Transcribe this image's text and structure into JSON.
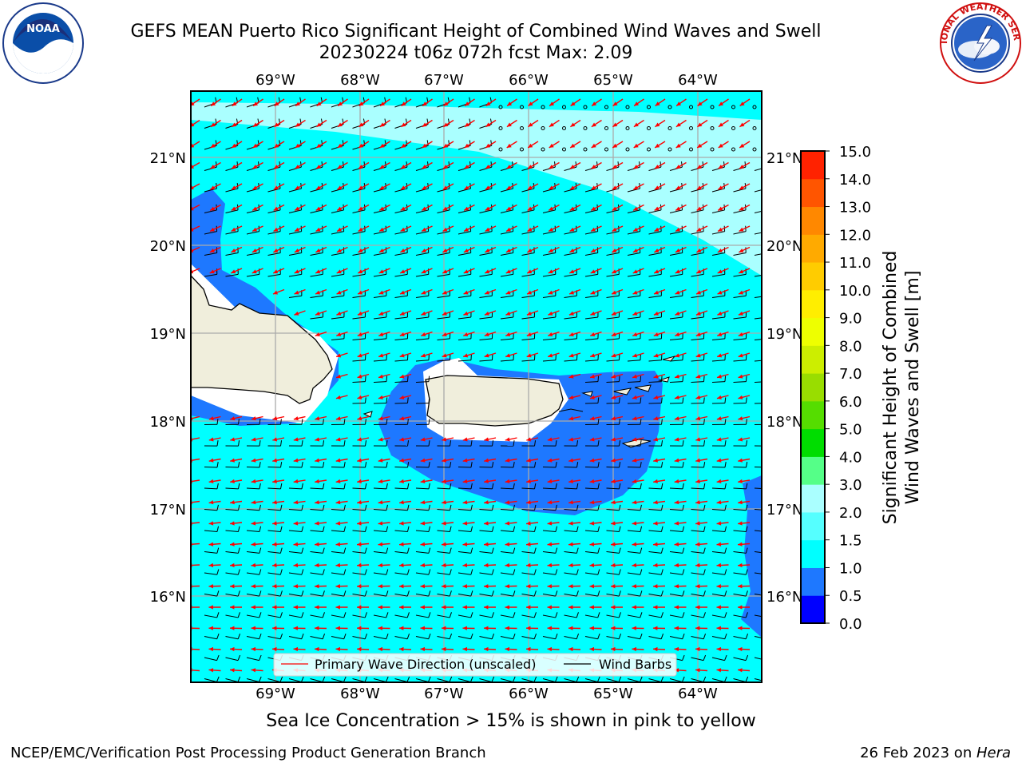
{
  "header": {
    "title_line1": "GEFS MEAN Puerto Rico Significant Height of Combined Wind Waves and Swell",
    "title_line2": "20230224 t06z 072h fcst   Max: 2.09"
  },
  "logos": {
    "left": {
      "icon": "noaa-logo",
      "text": "NOAA"
    },
    "right": {
      "icon": "national-weather-service-logo",
      "text": "NATIONAL WEATHER SERVICE"
    }
  },
  "map": {
    "lon_labels": [
      "69°W",
      "68°W",
      "67°W",
      "66°W",
      "65°W",
      "64°W"
    ],
    "lat_labels": [
      "21°N",
      "20°N",
      "19°N",
      "18°N",
      "17°N",
      "16°N"
    ],
    "legend": {
      "wave_direction": "Primary Wave Direction (unscaled)",
      "wind_barbs": "Wind Barbs"
    },
    "colors": {
      "land": "#f0eedc",
      "ocean_1_0_to_1_5": "#00ffff",
      "ocean_0_5_to_1_0": "#1e78ff",
      "ocean_2_0_to_3_0": "#aaffff",
      "wave_arrow": "#ff0000",
      "wind_barb": "#000000"
    }
  },
  "colorbar": {
    "label_line1": "Significant Height of Combined",
    "label_line2": "Wind Waves and Swell [m]",
    "ticks": [
      "0.0",
      "0.5",
      "1.0",
      "1.5",
      "2.0",
      "3.0",
      "4.0",
      "5.0",
      "6.0",
      "7.0",
      "8.0",
      "9.0",
      "10.0",
      "11.0",
      "12.0",
      "13.0",
      "14.0",
      "15.0"
    ],
    "colors": [
      "#0000ff",
      "#1e78ff",
      "#00ffff",
      "#55ffff",
      "#aaffff",
      "#55ff88",
      "#00dd00",
      "#55dd00",
      "#99dd00",
      "#ccee00",
      "#eeff00",
      "#ffee00",
      "#ffcc00",
      "#ffaa00",
      "#ff8800",
      "#ff5500",
      "#ff2200"
    ]
  },
  "notes": {
    "sea_ice": "Sea Ice Concentration > 15% is shown in pink to yellow"
  },
  "footer": {
    "left": "NCEP/EMC/Verification Post Processing Product Generation Branch",
    "right_date": "26 Feb 2023 on ",
    "right_machine": "Hera"
  }
}
